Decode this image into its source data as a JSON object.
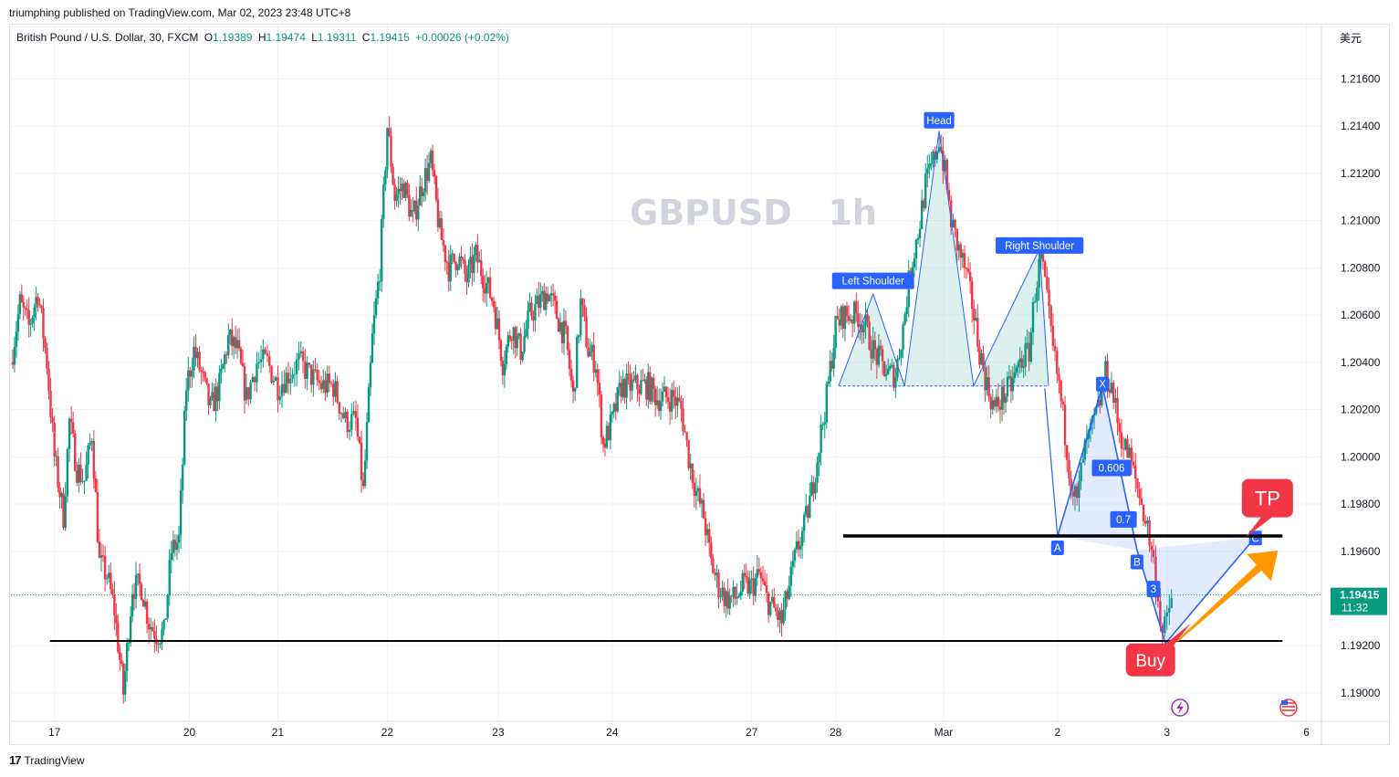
{
  "publisher_line": "triumphing published on TradingView.com, Mar 02, 2023 23:48 UTC+8",
  "legend": {
    "instrument": "British Pound / U.S. Dollar, 30, FXCM",
    "open_label": "O",
    "open": "1.19389",
    "high_label": "H",
    "high": "1.19474",
    "low_label": "L",
    "low": "1.19311",
    "close_label": "C",
    "close": "1.19415",
    "change": "+0.00026 (+0.02%)"
  },
  "currency": "美元",
  "watermark": "GBPUSD   1h",
  "footer_brand": "TradingView",
  "colors": {
    "up": "#089981",
    "down": "#f23645",
    "pattern": "#2962ff",
    "hs_fill": "#089981",
    "arrow": "#ff9800",
    "label_red": "#f23645"
  },
  "chart_data": {
    "type": "candlestick",
    "symbol": "GBPUSD",
    "interval": "30",
    "ylim": [
      1.1888,
      1.2183
    ],
    "y_ticks": [
      "1.21600",
      "1.21400",
      "1.21200",
      "1.21000",
      "1.20800",
      "1.20600",
      "1.20400",
      "1.20200",
      "1.20000",
      "1.19800",
      "1.19600",
      "1.19200",
      "1.19000"
    ],
    "y_tick_values": [
      1.216,
      1.214,
      1.212,
      1.21,
      1.208,
      1.206,
      1.204,
      1.202,
      1.2,
      1.198,
      1.196,
      1.192,
      1.19
    ],
    "x_ticks": [
      "17",
      "20",
      "21",
      "22",
      "23",
      "24",
      "27",
      "28",
      "Mar",
      "2",
      "3",
      "6"
    ],
    "x_tick_positions": [
      0.0,
      9.0,
      14.9,
      22.2,
      29.6,
      37.2,
      46.5,
      52.1,
      59.3,
      66.9,
      74.2,
      83.5
    ],
    "x_range": [
      -2.9,
      84.5
    ],
    "last_price": {
      "value": "1.19415",
      "countdown": "11:32"
    },
    "price_path": [
      [
        -2.9,
        1.204
      ],
      [
        -2.3,
        1.2065
      ],
      [
        -1.7,
        1.2055
      ],
      [
        -1.1,
        1.207
      ],
      [
        -0.5,
        1.204
      ],
      [
        0.0,
        1.2
      ],
      [
        0.6,
        1.1975
      ],
      [
        1.0,
        1.2015
      ],
      [
        1.5,
        1.1995
      ],
      [
        2.0,
        1.199
      ],
      [
        2.5,
        1.201
      ],
      [
        3.0,
        1.1955
      ],
      [
        3.5,
        1.195
      ],
      [
        4.0,
        1.1935
      ],
      [
        4.6,
        1.19
      ],
      [
        5.2,
        1.1945
      ],
      [
        5.8,
        1.1945
      ],
      [
        6.3,
        1.193
      ],
      [
        6.8,
        1.1925
      ],
      [
        7.3,
        1.1925
      ],
      [
        7.8,
        1.196
      ],
      [
        8.3,
        1.1965
      ],
      [
        8.8,
        1.203
      ],
      [
        9.3,
        1.2045
      ],
      [
        9.8,
        1.2035
      ],
      [
        10.4,
        1.202
      ],
      [
        11.0,
        1.203
      ],
      [
        11.6,
        1.205
      ],
      [
        12.2,
        1.2045
      ],
      [
        12.8,
        1.2025
      ],
      [
        13.5,
        1.204
      ],
      [
        14.2,
        1.204
      ],
      [
        14.9,
        1.203
      ],
      [
        15.6,
        1.2035
      ],
      [
        16.3,
        1.204
      ],
      [
        17.0,
        1.2035
      ],
      [
        17.8,
        1.203
      ],
      [
        18.6,
        1.203
      ],
      [
        19.4,
        1.2015
      ],
      [
        20.1,
        1.2015
      ],
      [
        20.6,
        1.1985
      ],
      [
        21.2,
        1.205
      ],
      [
        21.7,
        1.208
      ],
      [
        22.2,
        1.214
      ],
      [
        22.7,
        1.211
      ],
      [
        23.3,
        1.2115
      ],
      [
        23.9,
        1.21
      ],
      [
        24.5,
        1.2115
      ],
      [
        25.1,
        1.2125
      ],
      [
        25.7,
        1.2095
      ],
      [
        26.3,
        1.208
      ],
      [
        26.9,
        1.2085
      ],
      [
        27.5,
        1.2075
      ],
      [
        28.1,
        1.2085
      ],
      [
        28.7,
        1.2075
      ],
      [
        29.3,
        1.2065
      ],
      [
        29.9,
        1.204
      ],
      [
        30.5,
        1.2055
      ],
      [
        31.1,
        1.2045
      ],
      [
        31.7,
        1.206
      ],
      [
        32.3,
        1.2065
      ],
      [
        32.9,
        1.207
      ],
      [
        33.5,
        1.206
      ],
      [
        34.1,
        1.205
      ],
      [
        34.6,
        1.2025
      ],
      [
        35.1,
        1.2065
      ],
      [
        35.6,
        1.2045
      ],
      [
        36.1,
        1.204
      ],
      [
        36.6,
        1.2005
      ],
      [
        37.2,
        1.2015
      ],
      [
        37.8,
        1.203
      ],
      [
        38.4,
        1.203
      ],
      [
        39.0,
        1.203
      ],
      [
        39.6,
        1.203
      ],
      [
        40.2,
        1.2025
      ],
      [
        40.8,
        1.2025
      ],
      [
        41.3,
        1.2025
      ],
      [
        41.8,
        1.202
      ],
      [
        42.3,
        1.2
      ],
      [
        42.8,
        1.1985
      ],
      [
        43.3,
        1.1975
      ],
      [
        43.8,
        1.1955
      ],
      [
        44.3,
        1.1945
      ],
      [
        44.8,
        1.194
      ],
      [
        45.4,
        1.194
      ],
      [
        45.9,
        1.1945
      ],
      [
        46.5,
        1.1945
      ],
      [
        47.0,
        1.195
      ],
      [
        47.5,
        1.194
      ],
      [
        48.0,
        1.1935
      ],
      [
        48.5,
        1.193
      ],
      [
        49.0,
        1.1945
      ],
      [
        49.5,
        1.196
      ],
      [
        50.0,
        1.197
      ],
      [
        50.5,
        1.1985
      ],
      [
        51.0,
        1.2005
      ],
      [
        51.5,
        1.2025
      ],
      [
        52.1,
        1.2055
      ],
      [
        52.6,
        1.206
      ],
      [
        53.1,
        1.206
      ],
      [
        53.6,
        1.206
      ],
      [
        54.1,
        1.2055
      ],
      [
        54.6,
        1.2045
      ],
      [
        55.1,
        1.204
      ],
      [
        55.6,
        1.2035
      ],
      [
        56.1,
        1.2035
      ],
      [
        56.6,
        1.2055
      ],
      [
        57.1,
        1.208
      ],
      [
        57.6,
        1.2095
      ],
      [
        58.1,
        1.2115
      ],
      [
        58.6,
        1.2125
      ],
      [
        59.0,
        1.2135
      ],
      [
        59.4,
        1.212
      ],
      [
        59.8,
        1.21
      ],
      [
        60.2,
        1.209
      ],
      [
        60.7,
        1.208
      ],
      [
        61.2,
        1.2065
      ],
      [
        61.7,
        1.2045
      ],
      [
        62.2,
        1.203
      ],
      [
        62.7,
        1.202
      ],
      [
        63.2,
        1.2025
      ],
      [
        63.8,
        1.203
      ],
      [
        64.4,
        1.204
      ],
      [
        65.0,
        1.2045
      ],
      [
        65.4,
        1.207
      ],
      [
        65.8,
        1.2085
      ],
      [
        66.2,
        1.2065
      ],
      [
        66.6,
        1.2045
      ],
      [
        67.0,
        1.203
      ],
      [
        67.4,
        1.201
      ],
      [
        67.8,
        1.199
      ],
      [
        68.2,
        1.198
      ],
      [
        68.6,
        1.2
      ],
      [
        69.1,
        1.201
      ],
      [
        69.6,
        1.202
      ],
      [
        70.1,
        1.2035
      ],
      [
        70.5,
        1.203
      ],
      [
        70.9,
        1.2015
      ],
      [
        71.3,
        1.2005
      ],
      [
        71.7,
        1.2
      ],
      [
        72.1,
        1.199
      ],
      [
        72.5,
        1.198
      ],
      [
        72.9,
        1.197
      ],
      [
        73.3,
        1.1955
      ],
      [
        73.6,
        1.194
      ],
      [
        73.9,
        1.1925
      ],
      [
        74.2,
        1.193
      ],
      [
        74.5,
        1.1941
      ]
    ],
    "support_line": {
      "price": 1.1922,
      "x_range": [
        -0.3,
        81.9
      ],
      "label": ""
    },
    "resistance_line": {
      "price": 1.19665,
      "x_range": [
        52.6,
        81.9
      ],
      "label": ""
    },
    "head_and_shoulders": {
      "points": [
        [
          52.3,
          1.203
        ],
        [
          54.6,
          1.2069
        ],
        [
          56.7,
          1.203
        ],
        [
          59.0,
          1.2138
        ],
        [
          61.3,
          1.203
        ],
        [
          65.7,
          1.2088
        ],
        [
          66.3,
          1.203
        ]
      ],
      "neckline": [
        [
          52.3,
          1.203
        ],
        [
          66.3,
          1.203
        ]
      ],
      "labels": [
        {
          "text": "Left Shoulder",
          "x": 54.6,
          "y": 1.20745
        },
        {
          "text": "Head",
          "x": 59.0,
          "y": 1.21425
        },
        {
          "text": "Right Shoulder",
          "x": 65.7,
          "y": 1.20895
        }
      ]
    },
    "xabcd": {
      "X": [
        69.9,
        1.203
      ],
      "A": [
        66.9,
        1.19665
      ],
      "B": [
        72.2,
        1.19605
      ],
      "C": [
        80.1,
        1.1966
      ],
      "D": [
        74.1,
        1.1921
      ],
      "point_labels": [
        "X",
        "A",
        "B",
        "C",
        "D"
      ],
      "ratios": [
        {
          "text": "0.606",
          "x": 70.5,
          "y": 1.19953
        },
        {
          "text": "0.7",
          "x": 71.3,
          "y": 1.19735
        },
        {
          "text": "3",
          "x": 73.3,
          "y": 1.1944
        }
      ]
    },
    "annotations": [
      {
        "text": "TP",
        "x": 80.9,
        "y": 1.19825
      },
      {
        "text": "Buy",
        "x": 73.1,
        "y": 1.1914
      }
    ],
    "forecast_arrow": {
      "from": [
        74.9,
        1.1922
      ],
      "to": [
        81.6,
        1.19603
      ]
    }
  }
}
